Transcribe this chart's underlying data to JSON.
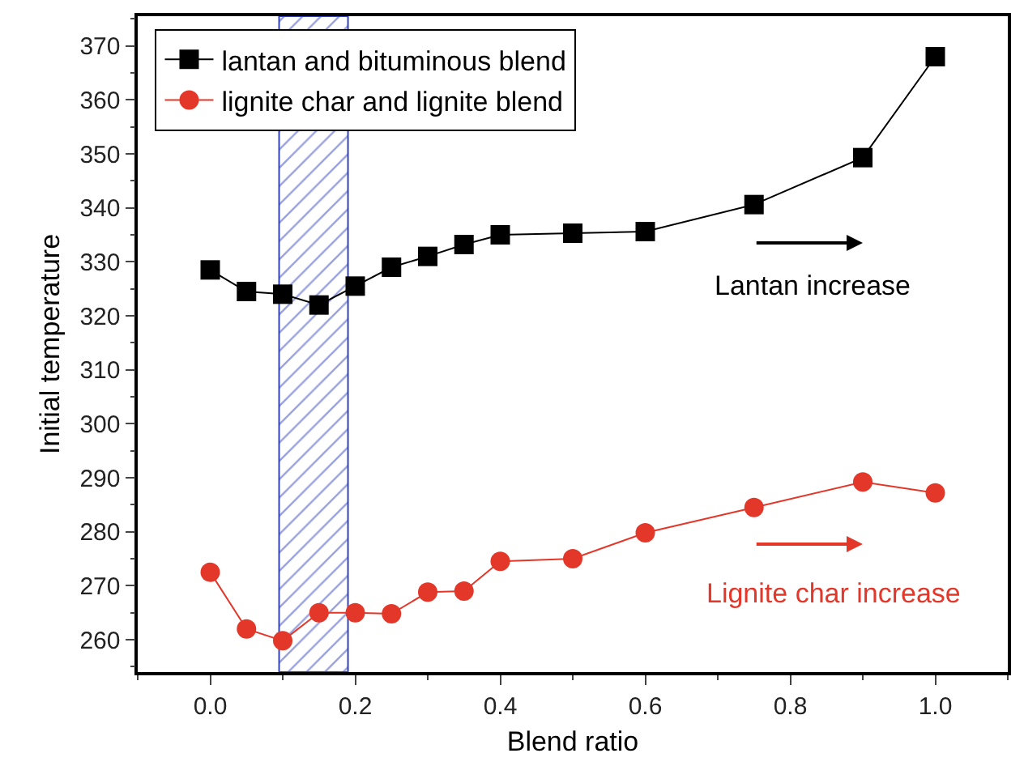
{
  "chart_data": {
    "type": "line",
    "xlabel": "Blend ratio",
    "ylabel": "Initial temperature",
    "x": [
      0,
      0.05,
      0.1,
      0.15,
      0.2,
      0.25,
      0.3,
      0.35,
      0.4,
      0.5,
      0.6,
      0.75,
      0.9,
      1.0
    ],
    "series": [
      {
        "name": "lantan and bituminous blend",
        "color": "#000000",
        "marker": "square",
        "values": [
          328.5,
          324.5,
          324,
          322,
          325.5,
          329,
          331,
          333.2,
          335,
          335.3,
          335.6,
          340.6,
          349.3,
          368
        ]
      },
      {
        "name": "lignite char and lignite blend",
        "color": "#e3372a",
        "marker": "circle",
        "values": [
          272.5,
          262,
          259.8,
          265,
          265,
          264.8,
          268.8,
          269,
          274.5,
          275,
          279.8,
          284.5,
          289.2,
          287.2
        ]
      }
    ],
    "xlim": [
      -0.1,
      1.1
    ],
    "xticks": [
      {
        "value": 0,
        "label": "0.0"
      },
      0.2,
      0.4,
      0.6,
      0.8,
      {
        "value": 1,
        "label": "1.0"
      }
    ],
    "ylim": [
      254,
      375.5
    ],
    "yticks": [
      260,
      270,
      280,
      290,
      300,
      310,
      320,
      330,
      340,
      350,
      360,
      370
    ],
    "bands": [
      {
        "axis": "x",
        "from": 0.095,
        "to": 0.19,
        "color": "#3344bb"
      }
    ],
    "annotations": [
      "Lantan increase",
      "Lignite char increase"
    ],
    "legend": "top left"
  }
}
